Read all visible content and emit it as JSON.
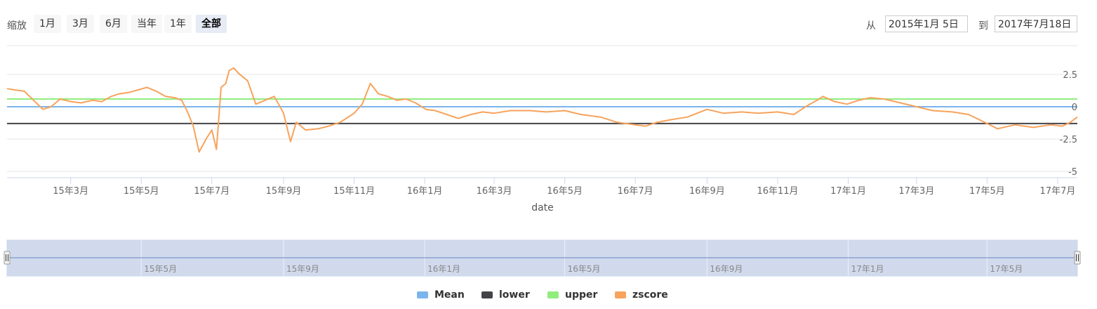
{
  "range_selector": {
    "zoom_label": "缩放",
    "buttons": [
      {
        "label": "1月",
        "active": false
      },
      {
        "label": "3月",
        "active": false
      },
      {
        "label": "6月",
        "active": false
      },
      {
        "label": "当年",
        "active": false
      },
      {
        "label": "1年",
        "active": false
      },
      {
        "label": "全部",
        "active": true
      }
    ],
    "from_label": "从",
    "from_value": "2015年1月 5日",
    "to_label": "到",
    "to_value": "2017年7月18日"
  },
  "chart_data": {
    "type": "line",
    "xlabel": "date",
    "x_tick_labels": [
      "15年3月",
      "15年5月",
      "15年7月",
      "15年9月",
      "15年11月",
      "16年1月",
      "16年3月",
      "16年5月",
      "16年7月",
      "16年9月",
      "16年11月",
      "17年1月",
      "17年3月",
      "17年5月",
      "17年7月"
    ],
    "x_tick_dates": [
      "2015-03-01",
      "2015-05-01",
      "2015-07-01",
      "2015-09-01",
      "2015-11-01",
      "2016-01-01",
      "2016-03-01",
      "2016-05-01",
      "2016-07-01",
      "2016-09-01",
      "2016-11-01",
      "2017-01-01",
      "2017-03-01",
      "2017-05-01",
      "2017-07-01"
    ],
    "x_range": [
      "2015-01-05",
      "2017-07-18"
    ],
    "y_tick_labels": [
      "2.5",
      "0",
      "-2.5",
      "-5"
    ],
    "y_ticks": [
      2.5,
      0,
      -2.5,
      -5
    ],
    "ylim": [
      -5,
      5
    ],
    "grid": true,
    "series": [
      {
        "name": "Mean",
        "color": "#7cb5ec",
        "constant": 0.0
      },
      {
        "name": "lower",
        "color": "#434348",
        "constant": -1.3
      },
      {
        "name": "upper",
        "color": "#90ed7d",
        "constant": 0.6
      },
      {
        "name": "zscore",
        "color": "#f7a35c",
        "points": [
          [
            "2015-01-05",
            1.4
          ],
          [
            "2015-01-12",
            1.3
          ],
          [
            "2015-01-20",
            1.2
          ],
          [
            "2015-01-28",
            0.5
          ],
          [
            "2015-02-05",
            -0.2
          ],
          [
            "2015-02-12",
            0.0
          ],
          [
            "2015-02-20",
            0.6
          ],
          [
            "2015-03-01",
            0.4
          ],
          [
            "2015-03-10",
            0.3
          ],
          [
            "2015-03-20",
            0.5
          ],
          [
            "2015-03-28",
            0.4
          ],
          [
            "2015-04-05",
            0.8
          ],
          [
            "2015-04-12",
            1.0
          ],
          [
            "2015-04-20",
            1.1
          ],
          [
            "2015-04-28",
            1.3
          ],
          [
            "2015-05-06",
            1.5
          ],
          [
            "2015-05-14",
            1.2
          ],
          [
            "2015-05-22",
            0.8
          ],
          [
            "2015-05-30",
            0.7
          ],
          [
            "2015-06-05",
            0.5
          ],
          [
            "2015-06-10",
            -0.4
          ],
          [
            "2015-06-15",
            -1.5
          ],
          [
            "2015-06-20",
            -3.5
          ],
          [
            "2015-06-26",
            -2.5
          ],
          [
            "2015-07-01",
            -1.8
          ],
          [
            "2015-07-05",
            -3.3
          ],
          [
            "2015-07-09",
            1.5
          ],
          [
            "2015-07-13",
            1.8
          ],
          [
            "2015-07-16",
            2.8
          ],
          [
            "2015-07-20",
            3.0
          ],
          [
            "2015-07-24",
            2.6
          ],
          [
            "2015-08-01",
            2.0
          ],
          [
            "2015-08-08",
            0.2
          ],
          [
            "2015-08-16",
            0.5
          ],
          [
            "2015-08-24",
            0.8
          ],
          [
            "2015-09-01",
            -0.5
          ],
          [
            "2015-09-07",
            -2.7
          ],
          [
            "2015-09-12",
            -1.2
          ],
          [
            "2015-09-20",
            -1.8
          ],
          [
            "2015-10-01",
            -1.7
          ],
          [
            "2015-10-10",
            -1.5
          ],
          [
            "2015-10-20",
            -1.2
          ],
          [
            "2015-11-01",
            -0.5
          ],
          [
            "2015-11-08",
            0.2
          ],
          [
            "2015-11-15",
            1.8
          ],
          [
            "2015-11-22",
            1.0
          ],
          [
            "2015-11-30",
            0.8
          ],
          [
            "2015-12-08",
            0.5
          ],
          [
            "2015-12-16",
            0.6
          ],
          [
            "2015-12-24",
            0.3
          ],
          [
            "2016-01-02",
            -0.2
          ],
          [
            "2016-01-10",
            -0.3
          ],
          [
            "2016-01-20",
            -0.6
          ],
          [
            "2016-01-30",
            -0.9
          ],
          [
            "2016-02-10",
            -0.6
          ],
          [
            "2016-02-20",
            -0.4
          ],
          [
            "2016-03-01",
            -0.5
          ],
          [
            "2016-03-15",
            -0.3
          ],
          [
            "2016-04-01",
            -0.3
          ],
          [
            "2016-04-15",
            -0.4
          ],
          [
            "2016-05-01",
            -0.3
          ],
          [
            "2016-05-15",
            -0.6
          ],
          [
            "2016-06-01",
            -0.8
          ],
          [
            "2016-06-15",
            -1.2
          ],
          [
            "2016-07-01",
            -1.4
          ],
          [
            "2016-07-10",
            -1.5
          ],
          [
            "2016-07-20",
            -1.2
          ],
          [
            "2016-08-01",
            -1.0
          ],
          [
            "2016-08-15",
            -0.8
          ],
          [
            "2016-09-01",
            -0.2
          ],
          [
            "2016-09-15",
            -0.5
          ],
          [
            "2016-10-01",
            -0.4
          ],
          [
            "2016-10-15",
            -0.5
          ],
          [
            "2016-11-01",
            -0.4
          ],
          [
            "2016-11-15",
            -0.6
          ],
          [
            "2016-11-25",
            0.0
          ],
          [
            "2016-12-05",
            0.5
          ],
          [
            "2016-12-10",
            0.8
          ],
          [
            "2016-12-20",
            0.4
          ],
          [
            "2016-12-31",
            0.2
          ],
          [
            "2017-01-10",
            0.5
          ],
          [
            "2017-01-20",
            0.7
          ],
          [
            "2017-02-01",
            0.6
          ],
          [
            "2017-02-15",
            0.3
          ],
          [
            "2017-03-01",
            0.0
          ],
          [
            "2017-03-15",
            -0.3
          ],
          [
            "2017-04-01",
            -0.4
          ],
          [
            "2017-04-15",
            -0.6
          ],
          [
            "2017-05-01",
            -1.3
          ],
          [
            "2017-05-10",
            -1.7
          ],
          [
            "2017-05-25",
            -1.4
          ],
          [
            "2017-06-10",
            -1.6
          ],
          [
            "2017-06-25",
            -1.4
          ],
          [
            "2017-07-05",
            -1.5
          ],
          [
            "2017-07-12",
            -1.2
          ],
          [
            "2017-07-18",
            -0.8
          ]
        ]
      }
    ],
    "legend_position": "bottom-center"
  },
  "navigator": {
    "tick_labels": [
      "15年5月",
      "15年9月",
      "16年1月",
      "16年5月",
      "16年9月",
      "17年1月",
      "17年5月"
    ],
    "tick_dates": [
      "2015-05-01",
      "2015-09-01",
      "2016-01-01",
      "2016-05-01",
      "2016-09-01",
      "2017-01-01",
      "2017-05-01"
    ],
    "handle_glyph": "Ⅱ"
  }
}
